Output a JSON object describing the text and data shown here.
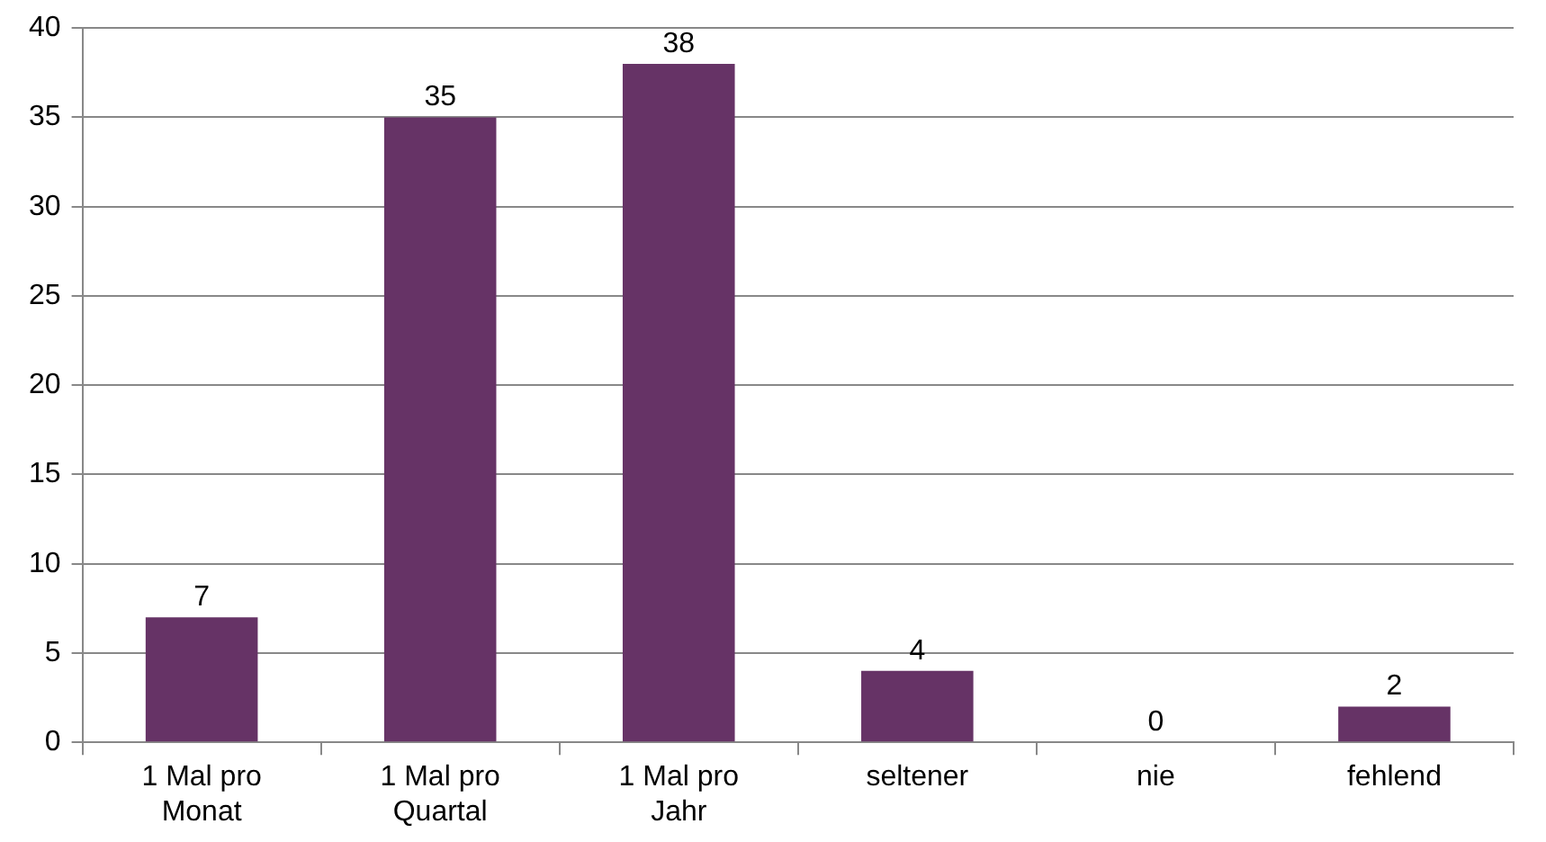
{
  "chart_data": {
    "type": "bar",
    "categories": [
      "1 Mal pro Monat",
      "1 Mal pro Quartal",
      "1 Mal pro Jahr",
      "seltener",
      "nie",
      "fehlend"
    ],
    "values": [
      7,
      35,
      38,
      4,
      0,
      2
    ],
    "color": "#663366",
    "ylim": [
      0,
      40
    ],
    "yticks": [
      0,
      5,
      10,
      15,
      20,
      25,
      30,
      35,
      40
    ],
    "grid": "y",
    "legend": false,
    "data_labels": true
  }
}
